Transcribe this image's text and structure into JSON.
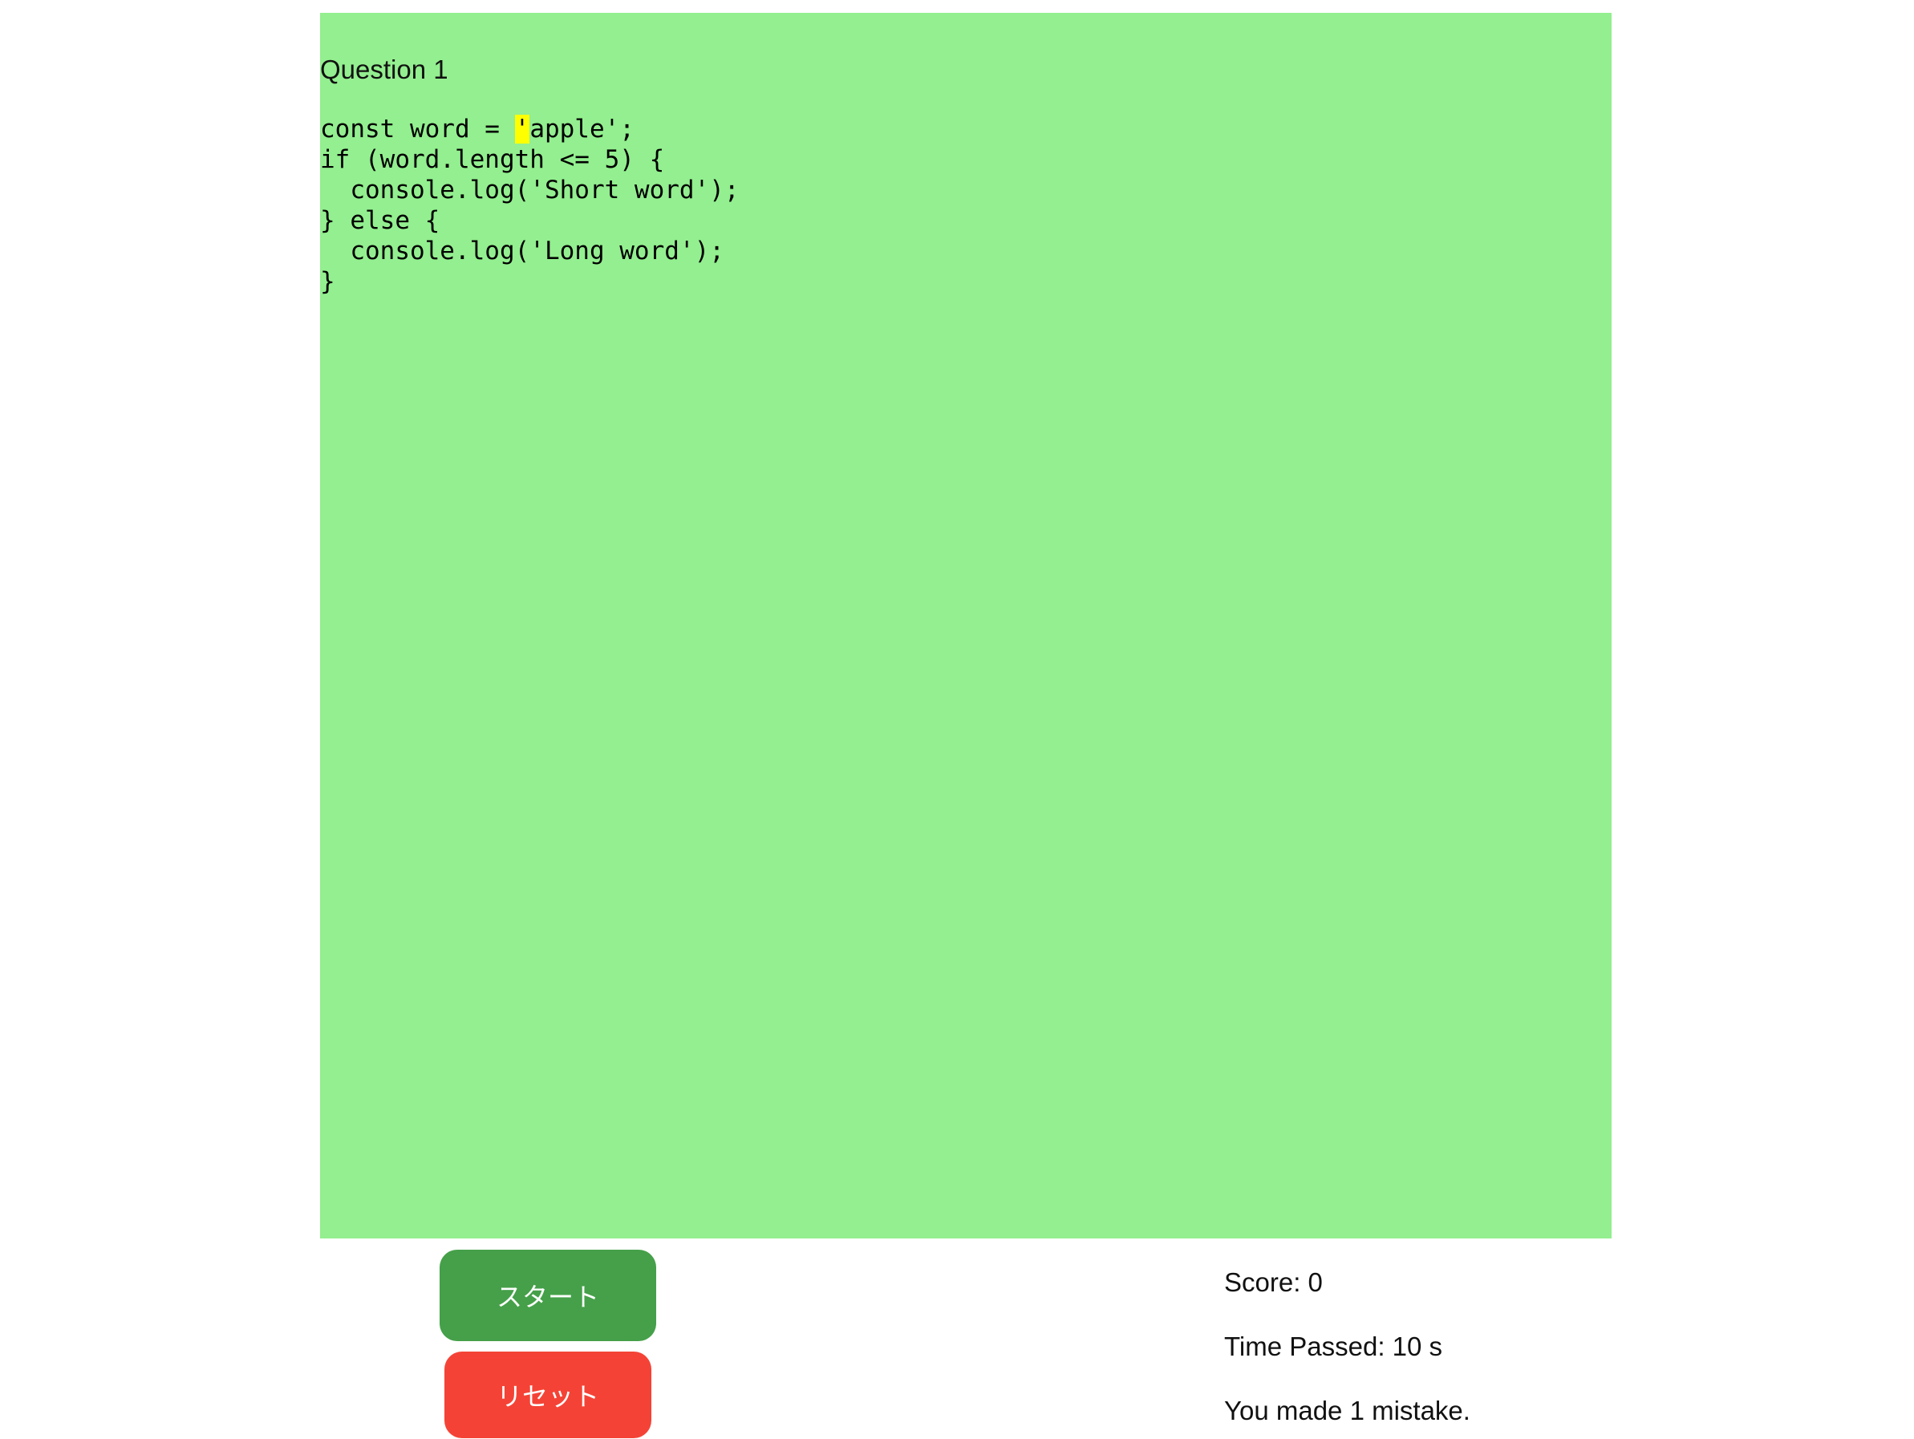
{
  "quiz": {
    "question_label": "Question 1",
    "code_before_highlight": "const word = ",
    "highlighted_char": "'",
    "code_after_highlight": "apple';\nif (word.length <= 5) {\n  console.log('Short word');\n} else {\n  console.log('Long word');\n}",
    "background_color": "#93ef8f",
    "highlight_color": "#ffff00"
  },
  "controls": {
    "start_label": "スタート",
    "reset_label": "リセット",
    "start_color": "#45a049",
    "reset_color": "#f44336"
  },
  "stats": {
    "score": "Score: 0",
    "time": "Time Passed: 10 s",
    "mistakes": "You made 1 mistake."
  }
}
